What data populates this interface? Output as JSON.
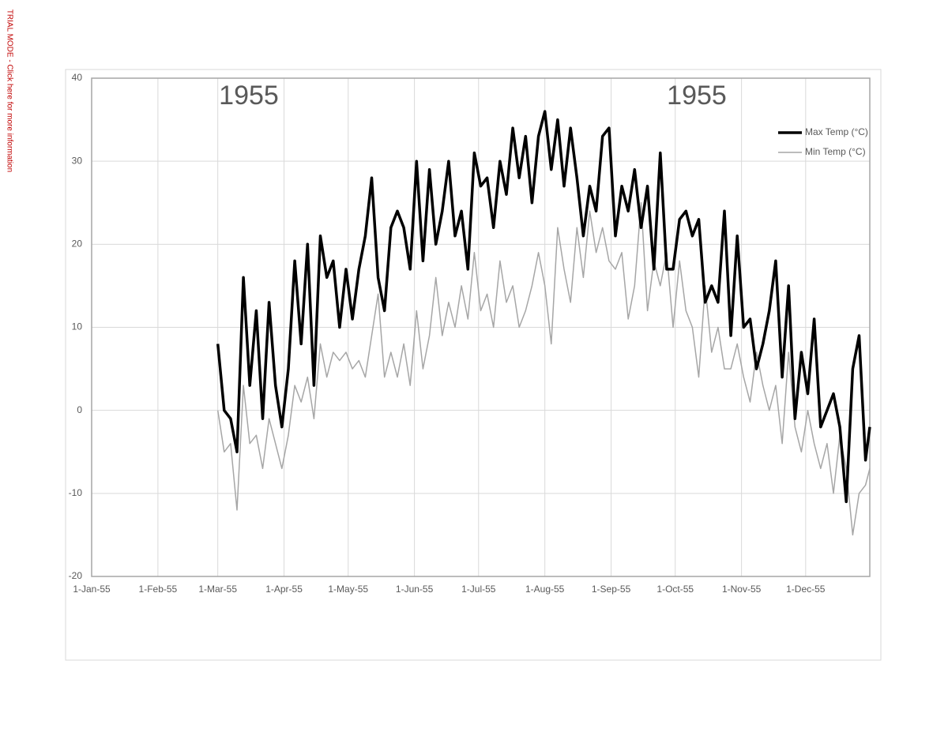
{
  "watermark": "TRIAL MODE - Click here for more information",
  "chart_data": {
    "type": "line",
    "annotations": [
      "1955",
      "1955"
    ],
    "x": [
      "1955-03-01",
      "1955-03-04",
      "1955-03-07",
      "1955-03-10",
      "1955-03-13",
      "1955-03-16",
      "1955-03-19",
      "1955-03-22",
      "1955-03-25",
      "1955-03-28",
      "1955-03-31",
      "1955-04-03",
      "1955-04-06",
      "1955-04-09",
      "1955-04-12",
      "1955-04-15",
      "1955-04-18",
      "1955-04-21",
      "1955-04-24",
      "1955-04-27",
      "1955-04-30",
      "1955-05-03",
      "1955-05-06",
      "1955-05-09",
      "1955-05-12",
      "1955-05-15",
      "1955-05-18",
      "1955-05-21",
      "1955-05-24",
      "1955-05-27",
      "1955-05-30",
      "1955-06-02",
      "1955-06-05",
      "1955-06-08",
      "1955-06-11",
      "1955-06-14",
      "1955-06-17",
      "1955-06-20",
      "1955-06-23",
      "1955-06-26",
      "1955-06-29",
      "1955-07-02",
      "1955-07-05",
      "1955-07-08",
      "1955-07-11",
      "1955-07-14",
      "1955-07-17",
      "1955-07-20",
      "1955-07-23",
      "1955-07-26",
      "1955-07-29",
      "1955-08-01",
      "1955-08-04",
      "1955-08-07",
      "1955-08-10",
      "1955-08-13",
      "1955-08-16",
      "1955-08-19",
      "1955-08-22",
      "1955-08-25",
      "1955-08-28",
      "1955-08-31",
      "1955-09-03",
      "1955-09-06",
      "1955-09-09",
      "1955-09-12",
      "1955-09-15",
      "1955-09-18",
      "1955-09-21",
      "1955-09-24",
      "1955-09-27",
      "1955-09-30",
      "1955-10-03",
      "1955-10-06",
      "1955-10-09",
      "1955-10-12",
      "1955-10-15",
      "1955-10-18",
      "1955-10-21",
      "1955-10-24",
      "1955-10-27",
      "1955-10-30",
      "1955-11-02",
      "1955-11-05",
      "1955-11-08",
      "1955-11-11",
      "1955-11-14",
      "1955-11-17",
      "1955-11-20",
      "1955-11-23",
      "1955-11-26",
      "1955-11-29",
      "1955-12-02",
      "1955-12-05",
      "1955-12-08",
      "1955-12-11",
      "1955-12-14",
      "1955-12-17",
      "1955-12-20",
      "1955-12-23",
      "1955-12-26",
      "1955-12-29",
      "1955-12-31"
    ],
    "series": [
      {
        "name": "Max Temp (°C)",
        "color": "#000000",
        "width": 3.5,
        "values": [
          8,
          0,
          -1,
          -5,
          16,
          3,
          12,
          -1,
          13,
          3,
          -2,
          5,
          18,
          8,
          20,
          3,
          21,
          16,
          18,
          10,
          17,
          11,
          17,
          21,
          28,
          16,
          12,
          22,
          24,
          22,
          17,
          30,
          18,
          29,
          20,
          24,
          30,
          21,
          24,
          17,
          31,
          27,
          28,
          22,
          30,
          26,
          34,
          28,
          33,
          25,
          33,
          36,
          29,
          35,
          27,
          34,
          28,
          21,
          27,
          24,
          33,
          34,
          21,
          27,
          24,
          29,
          22,
          27,
          17,
          31,
          17,
          17,
          23,
          24,
          21,
          23,
          13,
          15,
          13,
          24,
          9,
          21,
          10,
          11,
          5,
          8,
          12,
          18,
          4,
          15,
          -1,
          7,
          2,
          11,
          -2,
          0,
          2,
          -2,
          -11,
          5,
          9,
          -6,
          -2
        ]
      },
      {
        "name": "Min Temp (°C)",
        "color": "#a6a6a6",
        "width": 1.5,
        "values": [
          0,
          -5,
          -4,
          -12,
          3,
          -4,
          -3,
          -7,
          -1,
          -4,
          -7,
          -3,
          3,
          1,
          4,
          -1,
          8,
          4,
          7,
          6,
          7,
          5,
          6,
          4,
          9,
          14,
          4,
          7,
          4,
          8,
          3,
          12,
          5,
          9,
          16,
          9,
          13,
          10,
          15,
          11,
          19,
          12,
          14,
          10,
          18,
          13,
          15,
          10,
          12,
          15,
          19,
          15,
          8,
          22,
          17,
          13,
          22,
          16,
          24,
          19,
          22,
          18,
          17,
          19,
          11,
          15,
          25,
          12,
          18,
          15,
          19,
          10,
          18,
          12,
          10,
          4,
          15,
          7,
          10,
          5,
          5,
          8,
          4,
          1,
          7,
          3,
          0,
          3,
          -4,
          7,
          -2,
          -5,
          0,
          -4,
          -7,
          -4,
          -10,
          -3,
          -7,
          -15,
          -10,
          -9,
          -7
        ]
      }
    ],
    "xlim": [
      "1955-01-01",
      "1955-12-31"
    ],
    "xticks": [
      {
        "value": "1955-01-01",
        "label": "1-Jan-55"
      },
      {
        "value": "1955-02-01",
        "label": "1-Feb-55"
      },
      {
        "value": "1955-03-01",
        "label": "1-Mar-55"
      },
      {
        "value": "1955-04-01",
        "label": "1-Apr-55"
      },
      {
        "value": "1955-05-01",
        "label": "1-May-55"
      },
      {
        "value": "1955-06-01",
        "label": "1-Jun-55"
      },
      {
        "value": "1955-07-01",
        "label": "1-Jul-55"
      },
      {
        "value": "1955-08-01",
        "label": "1-Aug-55"
      },
      {
        "value": "1955-09-01",
        "label": "1-Sep-55"
      },
      {
        "value": "1955-10-01",
        "label": "1-Oct-55"
      },
      {
        "value": "1955-11-01",
        "label": "1-Nov-55"
      },
      {
        "value": "1955-12-01",
        "label": "1-Dec-55"
      }
    ],
    "ylim": [
      -20,
      40
    ],
    "yticks": [
      -20,
      -10,
      0,
      10,
      20,
      30,
      40
    ],
    "grid": true,
    "legend": "top-right"
  }
}
